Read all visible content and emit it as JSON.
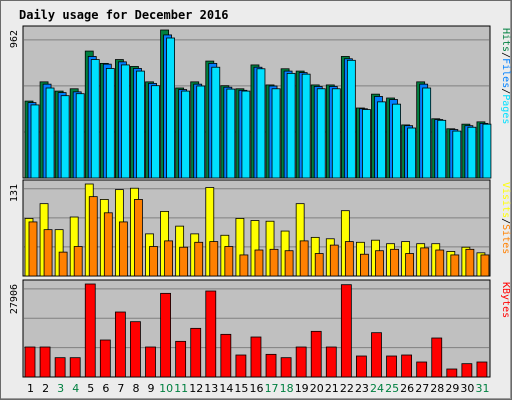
{
  "chart_data": {
    "type": "bar",
    "title": "Daily usage for December 2016",
    "colors": {
      "background": "#c0c0c0",
      "frame": "#ececec",
      "title": "#0000cc",
      "hits": "#008040",
      "files": "#0080ff",
      "pages": "#00e0ff",
      "visits": "#ff8000",
      "sites": "#ffff00",
      "kbytes": "#ff0000",
      "weekend": "#008040",
      "weekday": "#000000"
    },
    "days": [
      {
        "label": "1",
        "weekend": false
      },
      {
        "label": "2",
        "weekend": false
      },
      {
        "label": "3",
        "weekend": true
      },
      {
        "label": "4",
        "weekend": true
      },
      {
        "label": "5",
        "weekend": false
      },
      {
        "label": "6",
        "weekend": false
      },
      {
        "label": "7",
        "weekend": false
      },
      {
        "label": "8",
        "weekend": false
      },
      {
        "label": "9",
        "weekend": false
      },
      {
        "label": "10",
        "weekend": true
      },
      {
        "label": "11",
        "weekend": true
      },
      {
        "label": "12",
        "weekend": false
      },
      {
        "label": "13",
        "weekend": false
      },
      {
        "label": "14",
        "weekend": false
      },
      {
        "label": "15",
        "weekend": false
      },
      {
        "label": "16",
        "weekend": false
      },
      {
        "label": "17",
        "weekend": true
      },
      {
        "label": "18",
        "weekend": true
      },
      {
        "label": "19",
        "weekend": false
      },
      {
        "label": "20",
        "weekend": false
      },
      {
        "label": "21",
        "weekend": false
      },
      {
        "label": "22",
        "weekend": false
      },
      {
        "label": "23",
        "weekend": false
      },
      {
        "label": "24",
        "weekend": true
      },
      {
        "label": "25",
        "weekend": true
      },
      {
        "label": "26",
        "weekend": false
      },
      {
        "label": "27",
        "weekend": false
      },
      {
        "label": "28",
        "weekend": false
      },
      {
        "label": "29",
        "weekend": false
      },
      {
        "label": "30",
        "weekend": false
      },
      {
        "label": "31",
        "weekend": true
      }
    ],
    "panels": [
      {
        "id": "hits-panel",
        "max_label": "962",
        "ylim": [
          0,
          962
        ],
        "legend": [
          {
            "text": "Hits",
            "color": "hits"
          },
          {
            "text": "/",
            "color": "weekday"
          },
          {
            "text": "Files",
            "color": "files"
          },
          {
            "text": "/",
            "color": "weekday"
          },
          {
            "text": "Pages",
            "color": "pages"
          }
        ],
        "series": [
          {
            "name": "Hits",
            "color": "hits",
            "values": [
              500,
              625,
              565,
              580,
              825,
              745,
              770,
              725,
              625,
              962,
              585,
              625,
              760,
              600,
              580,
              735,
              605,
              710,
              695,
              605,
              605,
              790,
              455,
              545,
              520,
              345,
              625,
              385,
              320,
              350,
              365
            ]
          },
          {
            "name": "Files",
            "color": "files",
            "values": [
              490,
              610,
              555,
              560,
              790,
              740,
              755,
              712,
              615,
              930,
              575,
              610,
              745,
              590,
              570,
              720,
              598,
              695,
              685,
              595,
              595,
              775,
              450,
              530,
              510,
              340,
              610,
              380,
              315,
              340,
              355
            ]
          },
          {
            "name": "Pages",
            "color": "pages",
            "values": [
              475,
              585,
              535,
              548,
              770,
              712,
              735,
              695,
              600,
              910,
              565,
              598,
              720,
              578,
              565,
              710,
              580,
              680,
              675,
              580,
              580,
              765,
              445,
              495,
              480,
              325,
              585,
              375,
              305,
              330,
              350
            ]
          }
        ]
      },
      {
        "id": "visits-panel",
        "max_label": "131",
        "ylim": [
          0,
          131
        ],
        "legend": [
          {
            "text": "Visits",
            "color": "sites"
          },
          {
            "text": "/",
            "color": "weekday"
          },
          {
            "text": "Sites",
            "color": "visits"
          }
        ],
        "series": [
          {
            "name": "Visits",
            "color": "sites",
            "values": [
              82,
              103,
              66,
              84,
              131,
              109,
              123,
              125,
              60,
              92,
              71,
              60,
              126,
              58,
              82,
              79,
              78,
              64,
              103,
              55,
              53,
              93,
              48,
              51,
              46,
              49,
              46,
              46,
              35,
              41,
              33
            ]
          },
          {
            "name": "Sites",
            "color": "visits",
            "values": [
              77,
              66,
              34,
              42,
              113,
              90,
              77,
              109,
              42,
              50,
              41,
              48,
              49,
              42,
              30,
              37,
              38,
              36,
              50,
              32,
              44,
              49,
              31,
              36,
              38,
              32,
              40,
              37,
              30,
              38,
              30
            ]
          }
        ]
      },
      {
        "id": "kbytes-panel",
        "max_label": "27906",
        "ylim": [
          0,
          27906
        ],
        "legend": [
          {
            "text": "KBytes",
            "color": "kbytes"
          }
        ],
        "series": [
          {
            "name": "KBytes",
            "color": "kbytes",
            "values": [
              9000,
              9000,
              5800,
              5800,
              27906,
              11100,
              19500,
              16600,
              9000,
              25100,
              10700,
              14600,
              25800,
              12800,
              6600,
              12000,
              6800,
              5800,
              9000,
              13700,
              9000,
              27700,
              6300,
              13300,
              6300,
              6600,
              4500,
              11700,
              2400,
              4000,
              4500
            ]
          }
        ]
      }
    ]
  }
}
